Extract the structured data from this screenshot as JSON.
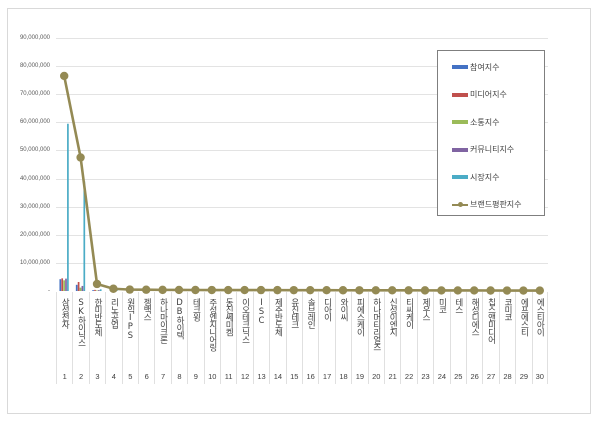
{
  "chart_data": {
    "type": "bar",
    "title": "",
    "xlabel": "",
    "ylabel": "",
    "ylim": [
      0,
      90000000
    ],
    "yticks": [
      "-",
      "10,000,000",
      "20,000,000",
      "30,000,000",
      "40,000,000",
      "50,000,000",
      "60,000,000",
      "70,000,000",
      "80,000,000",
      "90,000,000"
    ],
    "grid": true,
    "legend_position": "right",
    "categories": [
      "삼성전자",
      "SK하이닉스",
      "한미반도체",
      "리노공업",
      "원익IPS",
      "젬백스",
      "하나마이크론",
      "DB하이텍",
      "테크윙",
      "주성엔지니어링",
      "동진쎄미켐",
      "이오테크닉스",
      "ISC",
      "제주반도체",
      "유진테크",
      "솔브레인",
      "디아이",
      "와이씨",
      "피에스케이",
      "하나머티리얼즈",
      "신성이엔지",
      "티씨케이",
      "제우스",
      "미코",
      "테스",
      "해성디에스",
      "칩스앤미디어",
      "코미코",
      "에프에스티",
      "에스티아이"
    ],
    "category_numbers": [
      "1",
      "2",
      "3",
      "4",
      "5",
      "6",
      "7",
      "8",
      "9",
      "10",
      "11",
      "12",
      "13",
      "14",
      "15",
      "16",
      "17",
      "18",
      "19",
      "20",
      "21",
      "22",
      "23",
      "24",
      "25",
      "26",
      "27",
      "28",
      "29",
      "30"
    ],
    "series": [
      {
        "name": "참여지수",
        "type": "bar",
        "color": "#4472c4",
        "values": [
          4200000,
          2200000,
          300000,
          80000,
          60000,
          50000,
          50000,
          40000,
          40000,
          40000,
          40000,
          40000,
          30000,
          30000,
          30000,
          30000,
          30000,
          30000,
          30000,
          30000,
          30000,
          30000,
          30000,
          30000,
          30000,
          30000,
          30000,
          30000,
          30000,
          30000
        ]
      },
      {
        "name": "미디어지수",
        "type": "bar",
        "color": "#c0504d",
        "values": [
          4500000,
          3200000,
          400000,
          100000,
          80000,
          60000,
          60000,
          50000,
          50000,
          50000,
          50000,
          50000,
          40000,
          40000,
          40000,
          40000,
          40000,
          40000,
          40000,
          40000,
          40000,
          40000,
          40000,
          40000,
          40000,
          40000,
          40000,
          40000,
          40000,
          40000
        ]
      },
      {
        "name": "소통지수",
        "type": "bar",
        "color": "#9bbb59",
        "values": [
          3800000,
          1200000,
          200000,
          60000,
          50000,
          40000,
          40000,
          30000,
          30000,
          30000,
          30000,
          30000,
          20000,
          20000,
          20000,
          20000,
          20000,
          20000,
          20000,
          20000,
          20000,
          20000,
          20000,
          20000,
          20000,
          20000,
          20000,
          20000,
          20000,
          20000
        ]
      },
      {
        "name": "커뮤니티지수",
        "type": "bar",
        "color": "#8064a2",
        "values": [
          4400000,
          1800000,
          300000,
          80000,
          60000,
          50000,
          50000,
          40000,
          40000,
          40000,
          40000,
          40000,
          30000,
          30000,
          30000,
          30000,
          30000,
          30000,
          30000,
          30000,
          30000,
          30000,
          30000,
          30000,
          30000,
          30000,
          30000,
          30000,
          30000,
          30000
        ]
      },
      {
        "name": "시장지수",
        "type": "bar",
        "color": "#4bacc6",
        "values": [
          59500000,
          39000000,
          600000,
          150000,
          100000,
          80000,
          80000,
          60000,
          60000,
          60000,
          60000,
          60000,
          50000,
          50000,
          50000,
          50000,
          50000,
          50000,
          50000,
          50000,
          50000,
          50000,
          50000,
          50000,
          50000,
          50000,
          50000,
          50000,
          50000,
          50000
        ]
      },
      {
        "name": "브랜드평판지수",
        "type": "line",
        "color": "#948a54",
        "values": [
          76500000,
          47500000,
          2500000,
          800000,
          500000,
          450000,
          400000,
          380000,
          360000,
          350000,
          340000,
          330000,
          320000,
          310000,
          300000,
          290000,
          280000,
          270000,
          260000,
          250000,
          240000,
          230000,
          220000,
          210000,
          200000,
          190000,
          180000,
          170000,
          160000,
          150000
        ]
      }
    ]
  }
}
